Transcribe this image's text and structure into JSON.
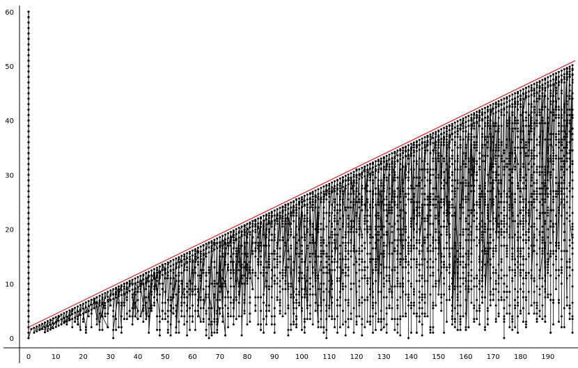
{
  "chart_data": {
    "type": "scatter",
    "title": "",
    "xlabel": "",
    "ylabel": "",
    "xlim": [
      -3,
      200
    ],
    "ylim": [
      -2,
      61
    ],
    "x_ticks": [
      0,
      10,
      20,
      30,
      40,
      50,
      60,
      70,
      80,
      90,
      100,
      110,
      120,
      130,
      140,
      150,
      160,
      170,
      180,
      190
    ],
    "y_ticks": [
      0,
      10,
      20,
      30,
      40,
      50,
      60
    ],
    "grid": false,
    "legend": "none",
    "colors": {
      "points": "#000000",
      "path": "#000000",
      "upper_bound": "#e31a1c"
    },
    "upper_bound_line": {
      "from": [
        0,
        2
      ],
      "to": [
        200,
        51
      ]
    },
    "axis_column_points": {
      "x": 0,
      "y_from": 0,
      "y_to": 60
    },
    "point_set": {
      "x_max": 199,
      "note_values": "points are plotted on integer x, with y between 0 and the bound line, joined in sequence by a path"
    }
  }
}
